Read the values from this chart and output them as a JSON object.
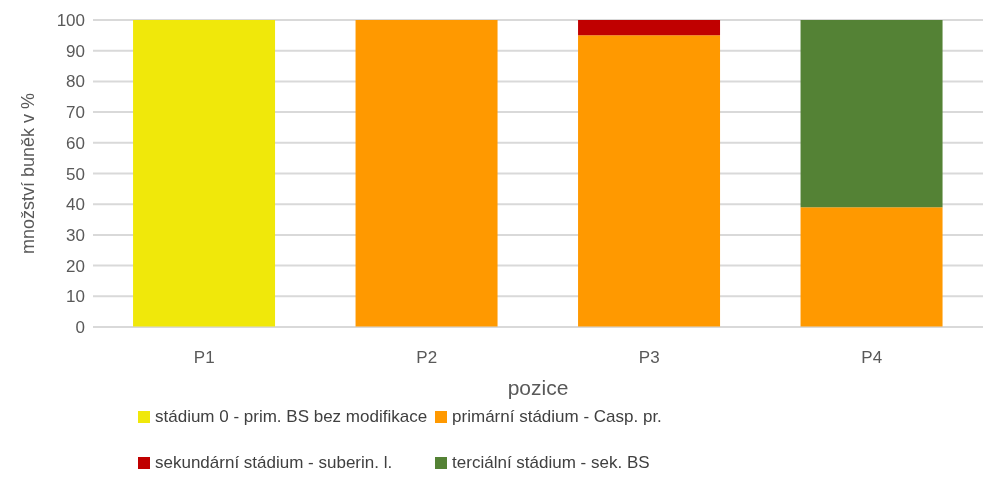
{
  "chart_data": {
    "type": "bar",
    "stacked": true,
    "xlabel": "pozice",
    "ylabel": "množství buněk v %",
    "categories": [
      "P1",
      "P2",
      "P3",
      "P4"
    ],
    "series": [
      {
        "name": "stádium 0 - prim. BS bez modifikace",
        "color": "#f0e80a",
        "values": [
          100,
          0,
          0,
          0
        ]
      },
      {
        "name": "primární stádium - Casp. pr.",
        "color": "#ff9900",
        "values": [
          0,
          100,
          95,
          39
        ]
      },
      {
        "name": "sekundární stádium - suberin. l.",
        "color": "#c00000",
        "values": [
          0,
          0,
          5,
          0
        ]
      },
      {
        "name": "terciální stádium - sek. BS",
        "color": "#548235",
        "values": [
          0,
          0,
          0,
          61
        ]
      }
    ],
    "ylim": [
      0,
      100
    ],
    "yticks": [
      0,
      10,
      20,
      30,
      40,
      50,
      60,
      70,
      80,
      90,
      100
    ],
    "grid": "y",
    "legend": "bottom"
  }
}
